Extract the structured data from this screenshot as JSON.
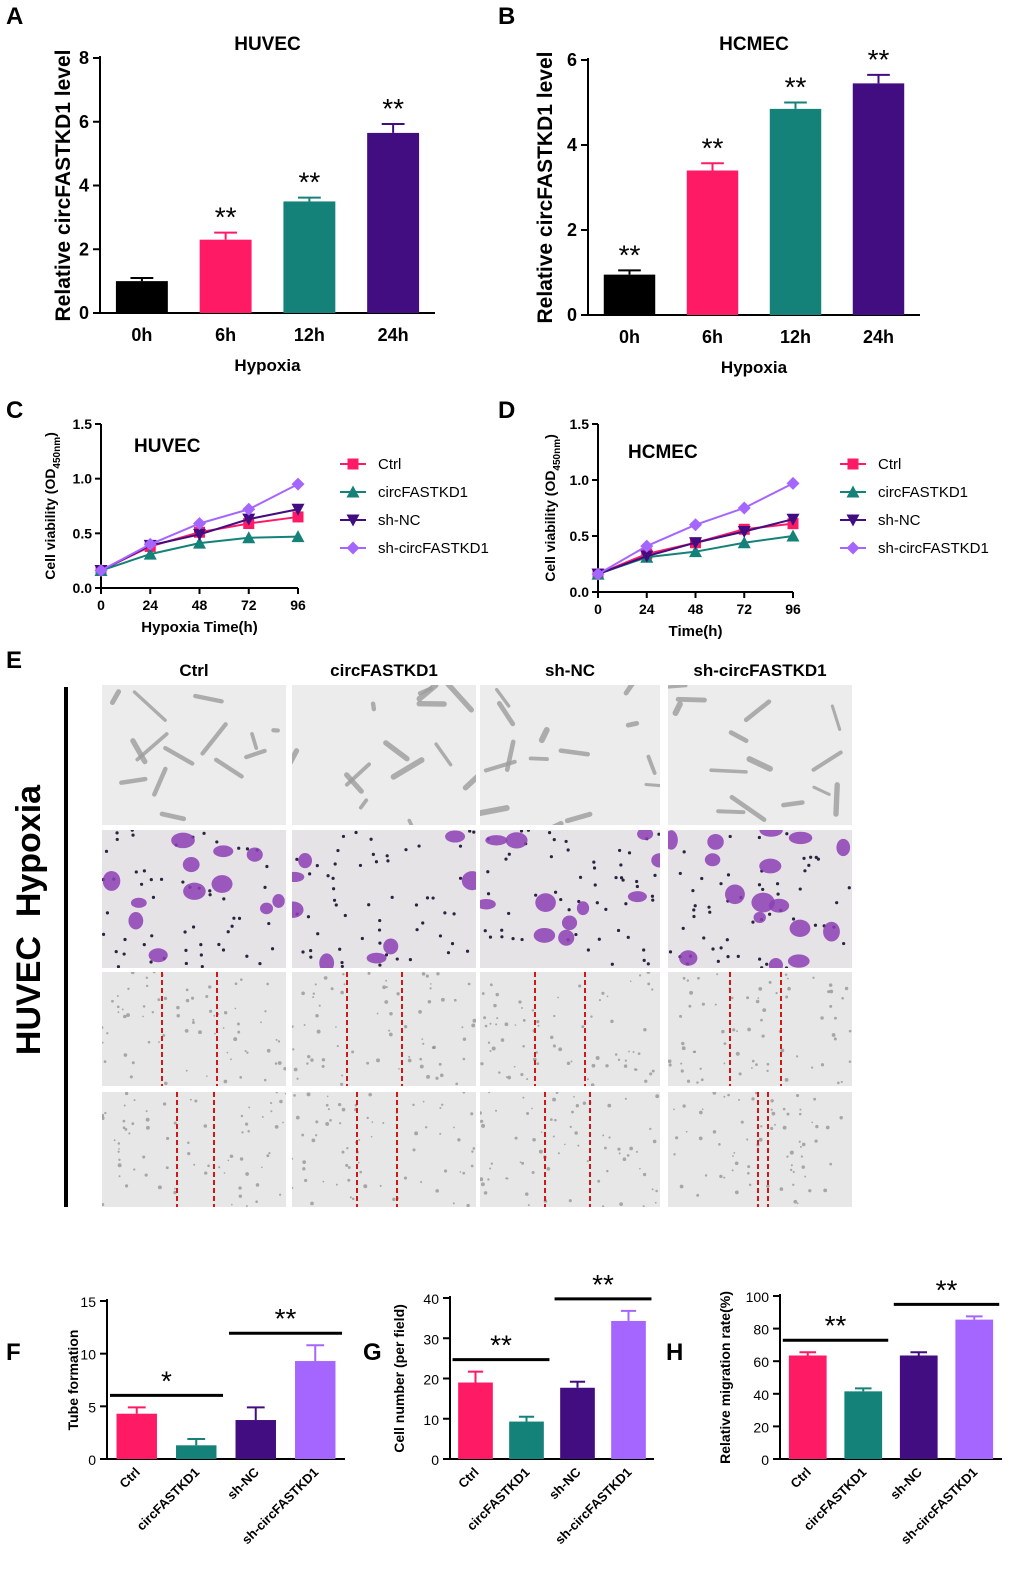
{
  "panels": {
    "A": "A",
    "B": "B",
    "C": "C",
    "D": "D",
    "E": "E",
    "F": "F",
    "G": "G",
    "H": "H"
  },
  "colors": {
    "black": "#000000",
    "pink": "#ff1a66",
    "teal": "#158279",
    "purple": "#420d80",
    "lavender": "#a566ff"
  },
  "chart_data": [
    {
      "id": "A",
      "type": "bar",
      "title": "HUVEC",
      "xlabel": "Hypoxia",
      "ylabel": "Relative circFASTKD1 level",
      "categories": [
        "0h",
        "6h",
        "12h",
        "24h"
      ],
      "values": [
        1.0,
        2.3,
        3.5,
        5.65
      ],
      "errors": [
        0.1,
        0.22,
        0.12,
        0.28
      ],
      "colors": [
        "#000000",
        "#ff1a66",
        "#158279",
        "#420d80"
      ],
      "significance": [
        "",
        "**",
        "**",
        "**"
      ],
      "ylim": [
        0,
        8
      ],
      "yticks": [
        0,
        2,
        4,
        6,
        8
      ]
    },
    {
      "id": "B",
      "type": "bar",
      "title": "HCMEC",
      "xlabel": "Hypoxia",
      "ylabel": "Relative circFASTKD1 level",
      "categories": [
        "0h",
        "6h",
        "12h",
        "24h"
      ],
      "values": [
        0.95,
        3.4,
        4.85,
        5.45
      ],
      "errors": [
        0.1,
        0.17,
        0.15,
        0.2
      ],
      "colors": [
        "#000000",
        "#ff1a66",
        "#158279",
        "#420d80"
      ],
      "significance": [
        "**",
        "**",
        "**",
        "**"
      ],
      "ylim": [
        0,
        6
      ],
      "yticks": [
        0,
        2,
        4,
        6
      ]
    },
    {
      "id": "C",
      "type": "line",
      "title": "HUVEC",
      "xlabel": "Hypoxia Time(h)",
      "ylabel_main": "Cell viability  (OD",
      "ylabel_sub": "450nm",
      "ylabel_end": ")",
      "x": [
        0,
        24,
        48,
        72,
        96
      ],
      "xlim": [
        0,
        96
      ],
      "ylim": [
        0,
        1.5
      ],
      "yticks": [
        0.0,
        0.5,
        1.0,
        1.5
      ],
      "series": [
        {
          "name": "Ctrl",
          "marker": "square",
          "color": "#ff1a66",
          "values": [
            0.16,
            0.38,
            0.51,
            0.59,
            0.65
          ]
        },
        {
          "name": "circFASTKD1",
          "marker": "triangle-up",
          "color": "#158279",
          "values": [
            0.16,
            0.31,
            0.41,
            0.46,
            0.47
          ]
        },
        {
          "name": "sh-NC",
          "marker": "triangle-down",
          "color": "#420d80",
          "values": [
            0.16,
            0.39,
            0.49,
            0.63,
            0.72
          ]
        },
        {
          "name": "sh-circFASTKD1",
          "marker": "diamond",
          "color": "#a566ff",
          "values": [
            0.16,
            0.4,
            0.59,
            0.72,
            0.95
          ]
        }
      ]
    },
    {
      "id": "D",
      "type": "line",
      "title": "HCMEC",
      "xlabel": "Time(h)",
      "ylabel_main": "Cell viability  (OD",
      "ylabel_sub": "450nm",
      "ylabel_end": ")",
      "x": [
        0,
        24,
        48,
        72,
        96
      ],
      "xlim": [
        0,
        96
      ],
      "ylim": [
        0,
        1.5
      ],
      "yticks": [
        0.0,
        0.5,
        1.0,
        1.5
      ],
      "series": [
        {
          "name": "Ctrl",
          "marker": "square",
          "color": "#ff1a66",
          "values": [
            0.16,
            0.34,
            0.44,
            0.56,
            0.61
          ]
        },
        {
          "name": "circFASTKD1",
          "marker": "triangle-up",
          "color": "#158279",
          "values": [
            0.16,
            0.31,
            0.36,
            0.44,
            0.5
          ]
        },
        {
          "name": "sh-NC",
          "marker": "triangle-down",
          "color": "#420d80",
          "values": [
            0.16,
            0.32,
            0.44,
            0.54,
            0.65
          ]
        },
        {
          "name": "sh-circFASTKD1",
          "marker": "diamond",
          "color": "#a566ff",
          "values": [
            0.16,
            0.41,
            0.6,
            0.75,
            0.97
          ]
        }
      ]
    },
    {
      "id": "F",
      "type": "bar",
      "title": "",
      "xlabel": "",
      "ylabel": "Tube formation",
      "categories": [
        "Ctrl",
        "circFASTKD1",
        "sh-NC",
        "sh-circFASTKD1"
      ],
      "values": [
        4.3,
        1.3,
        3.7,
        9.3
      ],
      "errors": [
        0.6,
        0.6,
        1.2,
        1.5
      ],
      "colors": [
        "#ff1a66",
        "#158279",
        "#420d80",
        "#a566ff"
      ],
      "comparisons": [
        {
          "from": 0,
          "to": 1,
          "label": "*"
        },
        {
          "from": 2,
          "to": 3,
          "label": "**"
        }
      ],
      "ylim": [
        0,
        15
      ],
      "yticks": [
        0,
        5,
        10,
        15
      ]
    },
    {
      "id": "G",
      "type": "bar",
      "title": "",
      "xlabel": "",
      "ylabel": "Cell number (per field)",
      "categories": [
        "Ctrl",
        "circFASTKD1",
        "sh-NC",
        "sh-circFASTKD1"
      ],
      "values": [
        19.0,
        9.3,
        17.7,
        34.3
      ],
      "errors": [
        2.7,
        1.2,
        1.5,
        2.5
      ],
      "colors": [
        "#ff1a66",
        "#158279",
        "#420d80",
        "#a566ff"
      ],
      "comparisons": [
        {
          "from": 0,
          "to": 1,
          "label": "**"
        },
        {
          "from": 2,
          "to": 3,
          "label": "**"
        }
      ],
      "ylim": [
        0,
        40
      ],
      "yticks": [
        0,
        10,
        20,
        30,
        40
      ]
    },
    {
      "id": "H",
      "type": "bar",
      "title": "",
      "xlabel": "",
      "ylabel": "Relative migration rate(%)",
      "categories": [
        "Ctrl",
        "circFASTKD1",
        "sh-NC",
        "sh-circFASTKD1"
      ],
      "values": [
        63.5,
        41.5,
        63.5,
        85.5
      ],
      "errors": [
        2.0,
        1.8,
        2.0,
        2.0
      ],
      "colors": [
        "#ff1a66",
        "#158279",
        "#420d80",
        "#a566ff"
      ],
      "comparisons": [
        {
          "from": 0,
          "to": 1,
          "label": "**"
        },
        {
          "from": 2,
          "to": 3,
          "label": "**"
        }
      ],
      "ylim": [
        0,
        100
      ],
      "yticks": [
        0,
        20,
        40,
        60,
        80,
        100
      ]
    }
  ],
  "panel_e": {
    "row_label": "HUVEC  Hypoxia",
    "columns": [
      "Ctrl",
      "circFASTKD1",
      "sh-NC",
      "sh-circFASTKD1"
    ]
  }
}
